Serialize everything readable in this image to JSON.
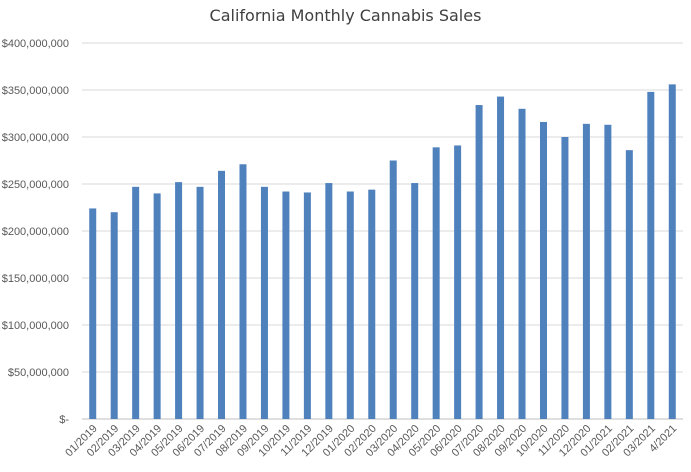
{
  "chart_data": {
    "type": "bar",
    "title": "California Monthly Cannabis Sales",
    "xlabel": "",
    "ylabel": "",
    "ylim": [
      0,
      400000000
    ],
    "yticks": [
      0,
      50000000,
      100000000,
      150000000,
      200000000,
      250000000,
      300000000,
      350000000,
      400000000
    ],
    "ytick_labels": [
      "$-",
      "$50,000,000",
      "$100,000,000",
      "$150,000,000",
      "$200,000,000",
      "$250,000,000",
      "$300,000,000",
      "$350,000,000",
      "$400,000,000"
    ],
    "grid": true,
    "legend": "none",
    "bar_color": "#4f81bd",
    "categories": [
      "01/2019",
      "02/2019",
      "03/2019",
      "04/2019",
      "05/2019",
      "06/2019",
      "07/2019",
      "08/2019",
      "09/2019",
      "10/2019",
      "11/2019",
      "12/2019",
      "01/2020",
      "02/2020",
      "03/2020",
      "04/2020",
      "05/2020",
      "06/2020",
      "07/2020",
      "08/2020",
      "09/2020",
      "10/2020",
      "11/2020",
      "12/2020",
      "01/2021",
      "02/2021",
      "03/2021",
      "4/2021"
    ],
    "values": [
      224000000,
      220000000,
      247000000,
      240000000,
      252000000,
      247000000,
      264000000,
      271000000,
      247000000,
      242000000,
      241000000,
      251000000,
      242000000,
      244000000,
      275000000,
      251000000,
      289000000,
      291000000,
      334000000,
      343000000,
      330000000,
      316000000,
      300000000,
      314000000,
      313000000,
      286000000,
      348000000,
      356000000
    ]
  }
}
